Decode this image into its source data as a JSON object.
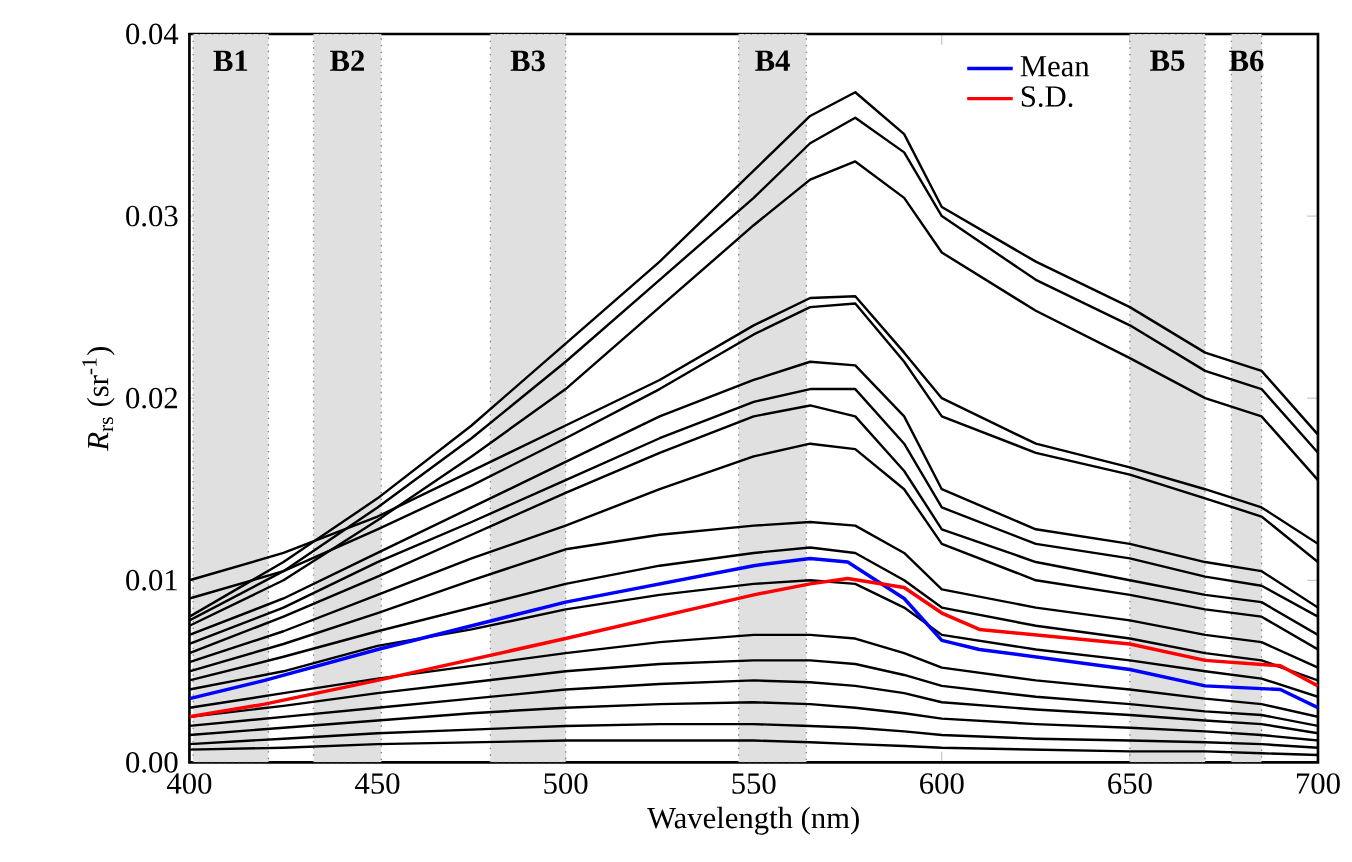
{
  "chart_data": {
    "type": "line",
    "xlabel": "Wavelength (nm)",
    "ylabel": "*R*$_{rs}$ (sr$^{-1}$)",
    "x": [
      400,
      425,
      450,
      475,
      500,
      525,
      550,
      565,
      577,
      590,
      600,
      625,
      650,
      670,
      685,
      700
    ],
    "xlim": [
      400,
      700
    ],
    "xticks": [
      400,
      450,
      500,
      550,
      600,
      650,
      700
    ],
    "ylim": [
      0,
      0.04
    ],
    "yticks": [
      {
        "value": 0,
        "label": "0.00"
      },
      0.01,
      0.02,
      0.03,
      0.04
    ],
    "legend": "top right",
    "grid": false,
    "line_style": "solid",
    "marker": "none",
    "bands": [
      {
        "axis": "x",
        "from": 401,
        "to": 421,
        "label": "B1",
        "color": "#e0e0e0"
      },
      {
        "axis": "x",
        "from": 433,
        "to": 451,
        "label": "B2",
        "color": "#e0e0e0"
      },
      {
        "axis": "x",
        "from": 480,
        "to": 500,
        "label": "B3",
        "color": "#e0e0e0"
      },
      {
        "axis": "x",
        "from": 546,
        "to": 564,
        "label": "B4",
        "color": "#e0e0e0"
      },
      {
        "axis": "x",
        "from": 650,
        "to": 670,
        "label": "B5",
        "color": "#e0e0e0"
      },
      {
        "axis": "x",
        "from": 677,
        "to": 685,
        "label": "B6",
        "color": "#e0e0e0"
      }
    ],
    "series": [
      {
        "color": "#000000",
        "values": [
          0.008,
          0.011,
          0.0145,
          0.0185,
          0.023,
          0.0275,
          0.0325,
          0.0355,
          0.0368,
          0.0345,
          0.0305,
          0.0275,
          0.025,
          0.0225,
          0.0215,
          0.018
        ]
      },
      {
        "color": "#000000",
        "values": [
          0.0078,
          0.0105,
          0.014,
          0.0178,
          0.022,
          0.0265,
          0.031,
          0.034,
          0.0354,
          0.0335,
          0.03,
          0.0265,
          0.024,
          0.0215,
          0.0205,
          0.017
        ]
      },
      {
        "color": "#000000",
        "values": [
          0.0075,
          0.01,
          0.0133,
          0.0168,
          0.0205,
          0.025,
          0.0295,
          0.032,
          0.033,
          0.031,
          0.028,
          0.0248,
          0.0222,
          0.02,
          0.019,
          0.0155
        ]
      },
      {
        "color": "#000000",
        "values": [
          0.01,
          0.0115,
          0.0135,
          0.016,
          0.0185,
          0.021,
          0.024,
          0.0255,
          0.0256,
          0.0225,
          0.02,
          0.0175,
          0.0162,
          0.015,
          0.014,
          0.012
        ]
      },
      {
        "color": "#000000",
        "values": [
          0.009,
          0.0105,
          0.0128,
          0.0152,
          0.0178,
          0.0205,
          0.0235,
          0.025,
          0.0252,
          0.022,
          0.019,
          0.017,
          0.0158,
          0.0145,
          0.0135,
          0.011
        ]
      },
      {
        "color": "#000000",
        "values": [
          0.007,
          0.009,
          0.0115,
          0.014,
          0.0165,
          0.019,
          0.021,
          0.022,
          0.0218,
          0.019,
          0.015,
          0.0128,
          0.012,
          0.011,
          0.0105,
          0.0085
        ]
      },
      {
        "color": "#000000",
        "values": [
          0.0065,
          0.0085,
          0.011,
          0.0132,
          0.0155,
          0.0178,
          0.0198,
          0.0205,
          0.0205,
          0.0175,
          0.014,
          0.012,
          0.0112,
          0.0102,
          0.0097,
          0.008
        ]
      },
      {
        "color": "#000000",
        "values": [
          0.006,
          0.008,
          0.0102,
          0.0125,
          0.0148,
          0.017,
          0.019,
          0.0196,
          0.019,
          0.016,
          0.0128,
          0.011,
          0.01,
          0.0092,
          0.0088,
          0.007
        ]
      },
      {
        "color": "#000000",
        "values": [
          0.0055,
          0.0072,
          0.0092,
          0.0112,
          0.013,
          0.015,
          0.0168,
          0.0175,
          0.0172,
          0.015,
          0.012,
          0.01,
          0.0092,
          0.0084,
          0.008,
          0.0062
        ]
      },
      {
        "color": "#000000",
        "values": [
          0.005,
          0.0065,
          0.0082,
          0.01,
          0.0117,
          0.0125,
          0.013,
          0.0132,
          0.013,
          0.0115,
          0.0095,
          0.0085,
          0.0078,
          0.007,
          0.0066,
          0.0052
        ]
      },
      {
        "color": "#000000",
        "values": [
          0.0045,
          0.0058,
          0.0072,
          0.0085,
          0.0098,
          0.0108,
          0.0115,
          0.0118,
          0.0115,
          0.01,
          0.0085,
          0.0075,
          0.0068,
          0.006,
          0.0056,
          0.0045
        ]
      },
      {
        "color": "#000000",
        "values": [
          0.004,
          0.005,
          0.0064,
          0.0073,
          0.0084,
          0.0092,
          0.0098,
          0.01,
          0.0098,
          0.0085,
          0.007,
          0.0062,
          0.0056,
          0.005,
          0.0046,
          0.0036
        ]
      },
      {
        "color": "#000000",
        "values": [
          0.003,
          0.0038,
          0.0046,
          0.0053,
          0.006,
          0.0066,
          0.007,
          0.007,
          0.0068,
          0.006,
          0.0052,
          0.0045,
          0.004,
          0.0035,
          0.0032,
          0.0025
        ]
      },
      {
        "color": "#000000",
        "values": [
          0.0025,
          0.0031,
          0.0038,
          0.0044,
          0.005,
          0.0054,
          0.0056,
          0.0056,
          0.0054,
          0.0048,
          0.0042,
          0.0036,
          0.0032,
          0.0028,
          0.0026,
          0.002
        ]
      },
      {
        "color": "#000000",
        "values": [
          0.002,
          0.0025,
          0.003,
          0.0035,
          0.004,
          0.0043,
          0.0045,
          0.0044,
          0.0042,
          0.0038,
          0.0033,
          0.0029,
          0.0026,
          0.0023,
          0.0021,
          0.0016
        ]
      },
      {
        "color": "#000000",
        "values": [
          0.0015,
          0.0019,
          0.0023,
          0.0027,
          0.003,
          0.0032,
          0.0033,
          0.0032,
          0.003,
          0.0027,
          0.0024,
          0.0021,
          0.0019,
          0.0017,
          0.0015,
          0.0012
        ]
      },
      {
        "color": "#000000",
        "values": [
          0.001,
          0.0013,
          0.0016,
          0.0018,
          0.002,
          0.0021,
          0.0021,
          0.002,
          0.0019,
          0.0017,
          0.0015,
          0.0013,
          0.0012,
          0.0011,
          0.001,
          0.0008
        ]
      },
      {
        "color": "#000000",
        "values": [
          0.0007,
          0.0008,
          0.001,
          0.0011,
          0.0012,
          0.0012,
          0.0012,
          0.0011,
          0.001,
          0.0009,
          0.0008,
          0.0007,
          0.0006,
          0.0006,
          0.0005,
          0.0004
        ]
      },
      {
        "name": "Mean",
        "color": "#0000ff",
        "x": [
          400,
          420,
          450,
          500,
          550,
          565,
          575,
          590,
          600,
          610,
          650,
          670,
          690,
          700
        ],
        "values": [
          0.0035,
          0.0045,
          0.0062,
          0.0088,
          0.0108,
          0.0112,
          0.011,
          0.009,
          0.0067,
          0.0062,
          0.0051,
          0.0042,
          0.004,
          0.003
        ]
      },
      {
        "name": "S.D.",
        "color": "#ff0000",
        "x": [
          400,
          420,
          450,
          500,
          550,
          565,
          575,
          590,
          600,
          610,
          650,
          670,
          690,
          700
        ],
        "values": [
          0.0025,
          0.0032,
          0.0045,
          0.0068,
          0.0092,
          0.0098,
          0.0101,
          0.0096,
          0.0082,
          0.0073,
          0.0065,
          0.0056,
          0.0053,
          0.0042
        ]
      }
    ]
  }
}
